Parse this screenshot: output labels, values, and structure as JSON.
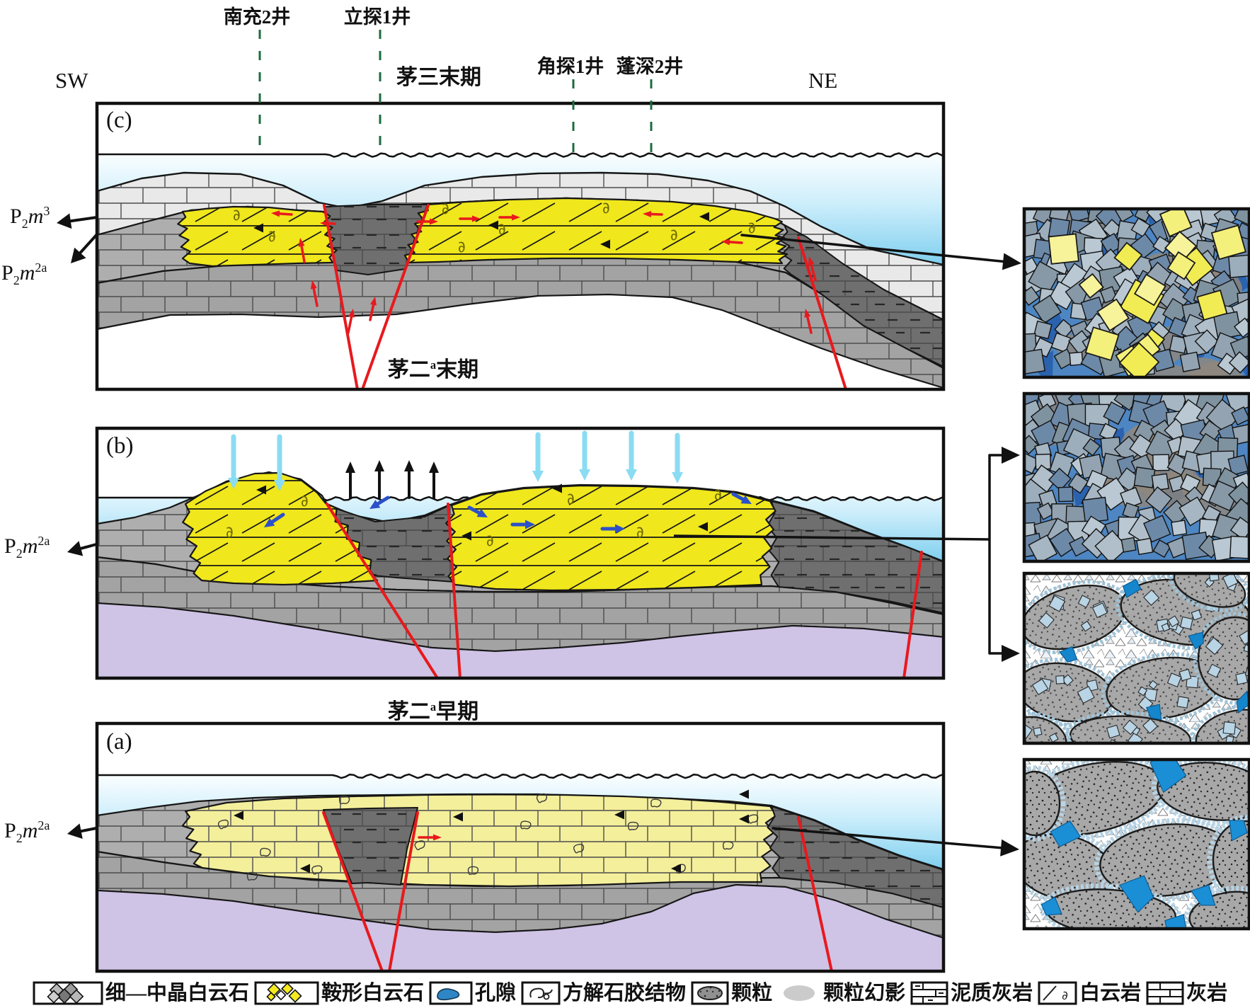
{
  "compass": {
    "sw": "SW",
    "ne": "NE"
  },
  "wells": [
    {
      "name": "南充2井"
    },
    {
      "name": "立探1井"
    },
    {
      "name": "角探1井"
    },
    {
      "name": "蓬深2井"
    }
  ],
  "panels": [
    {
      "id": "c",
      "letter": "(c)",
      "stage": {
        "pre": "茅三",
        "sup": "",
        "post": "末期"
      },
      "strat_labels": [
        {
          "base": "P",
          "sub": "2",
          "unit": "m",
          "sup": "3"
        },
        {
          "base": "P",
          "sub": "2",
          "unit": "m",
          "sup": "2a"
        }
      ]
    },
    {
      "id": "b",
      "letter": "(b)",
      "stage": {
        "pre": "茅二",
        "sup": "a",
        "post": "末期"
      },
      "strat_labels": [
        {
          "base": "P",
          "sub": "2",
          "unit": "m",
          "sup": "2a"
        }
      ]
    },
    {
      "id": "a",
      "letter": "(a)",
      "stage": {
        "pre": "茅二",
        "sup": "a",
        "post": "早期"
      },
      "strat_labels": [
        {
          "base": "P",
          "sub": "2",
          "unit": "m",
          "sup": "2a"
        }
      ]
    }
  ],
  "legend": {
    "items": [
      {
        "icon": "fine-medium-dolomite-icon",
        "label": "细—中晶白云石"
      },
      {
        "icon": "saddle-dolomite-icon",
        "label": "鞍形白云石"
      },
      {
        "icon": "pore-icon",
        "label": "孔隙"
      },
      {
        "icon": "calcite-cement-icon",
        "label": "方解石胶结物"
      },
      {
        "icon": "grain-icon",
        "label": "颗粒"
      },
      {
        "icon": "grain-ghost-icon",
        "label": "颗粒幻影"
      },
      {
        "icon": "muddy-limestone-icon",
        "label": "泥质灰岩"
      },
      {
        "icon": "dolostone-icon",
        "label": "白云岩"
      },
      {
        "icon": "limestone-icon",
        "label": "灰岩"
      }
    ]
  },
  "colors": {
    "water_top": "#fbfeff",
    "water_mid": "#cdeefb",
    "water_bottom": "#7fcfef",
    "limestone_light": "#e9e9e9",
    "limestone_gray": "#aeaeae",
    "limestone_gray2": "#a3a3a3",
    "muddy_limestone": "#6f6f6f",
    "dolomite_yellow": "#f0e71c",
    "limestone_pale_yellow": "#f4ef9b",
    "basement_purple": "#cfc3e6",
    "fault_red": "#e8191d",
    "well_line_green": "#1d6b40",
    "arrow_blue": "#2c50c8",
    "arrow_cyan": "#8adcf2",
    "arrow_black": "#111111",
    "pore_blue": "#1b8fd6",
    "pore_blue_deep": "#2a62ae",
    "crystal_field_blue": "#4d86c2",
    "saddle_yellow": "#f1ec53",
    "ghost_gray": "#8f887c",
    "grain_gray": "#a8a8a8",
    "frame": "#111111"
  }
}
